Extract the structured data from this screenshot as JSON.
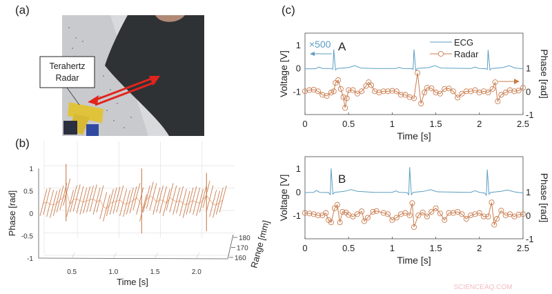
{
  "panels": {
    "a": "(a)",
    "b": "(b)",
    "c": "(c)"
  },
  "photo": {
    "annotation_line1": "Terahertz",
    "annotation_line2": "Radar"
  },
  "watermark": "SCIENCEAQ.COM",
  "colors": {
    "ecg": "#5b9ec2",
    "radar": "#c97b4d",
    "arrow_red": "#e3241c"
  },
  "chart_data": [
    {
      "id": "b",
      "type": "line",
      "projection": "3d-waterfall",
      "xlabel": "Time [s]",
      "ylabel": "Phase [rad]",
      "zlabel": "Range [mm]",
      "xticks": [
        "0.5",
        "1.0",
        "1.5",
        "2.0"
      ],
      "yticks": [
        "1",
        "0.5",
        "0",
        "-0.5",
        "-1"
      ],
      "zticks": [
        "180",
        "170",
        "160"
      ],
      "xlim": [
        0.15,
        2.35
      ],
      "ylim": [
        -1,
        1.2
      ],
      "grid": true,
      "series": [
        {
          "t": [
            0.15,
            0.19,
            0.23,
            0.27,
            0.31,
            0.35,
            0.39,
            0.43,
            0.47,
            0.51,
            0.55,
            0.59,
            0.63,
            0.67,
            0.71,
            0.75,
            0.79,
            0.83,
            0.87,
            0.91,
            0.95,
            0.99,
            1.03,
            1.07,
            1.11,
            1.15,
            1.19,
            1.23,
            1.27,
            1.31,
            1.35,
            1.39,
            1.43,
            1.47,
            1.51,
            1.55,
            1.59,
            1.63,
            1.67,
            1.71,
            1.75,
            1.79,
            1.83,
            1.87,
            1.91,
            1.95,
            1.99,
            2.03,
            2.07,
            2.11,
            2.15,
            2.19,
            2.23,
            2.27,
            2.31
          ],
          "phase": [
            0.22,
            0.25,
            0.2,
            0.18,
            0.22,
            0.3,
            0.35,
            0.45,
            0.2,
            0.3,
            0.32,
            0.28,
            0.25,
            0.28,
            0.3,
            0.32,
            0.25,
            0.3,
            0.15,
            0.1,
            0.22,
            0.25,
            0.27,
            0.3,
            0.22,
            0.2,
            0.25,
            0.28,
            0.35,
            0.25,
            0.1,
            0.3,
            0.38,
            0.35,
            0.25,
            0.3,
            0.28,
            0.22,
            0.35,
            0.3,
            0.25,
            0.28,
            0.22,
            0.18,
            0.25,
            0.28,
            0.25,
            0.22,
            0.3,
            0.4,
            0.3,
            0.2,
            0.18,
            0.25,
            0.3
          ],
          "spikes": [
            {
              "t": 0.43,
              "max": 1.1,
              "min": -0.18
            },
            {
              "t": 1.34,
              "max": 1.0,
              "min": -0.45
            },
            {
              "t": 2.12,
              "max": 0.9,
              "min": -0.4
            }
          ]
        }
      ]
    },
    {
      "id": "c-A",
      "type": "line",
      "label": "A",
      "gain_annotation": "×500",
      "xlabel": "Time [s]",
      "ylabel_left": "Voltage [V]",
      "ylabel_right": "Phase [rad]",
      "xticks": [
        "0",
        "0.5",
        "1",
        "1.5",
        "2",
        "2.5"
      ],
      "yticks_left": [
        "1",
        "0",
        "-1"
      ],
      "yticks_right": [
        "1",
        "0",
        "-1"
      ],
      "xlim": [
        0,
        2.5
      ],
      "ylim_left": [
        -2,
        1.5
      ],
      "ylim_right": [
        -1,
        2.5
      ],
      "legend": {
        "position": "top-right",
        "entries": [
          "ECG",
          "Radar"
        ]
      },
      "series": [
        {
          "name": "ECG",
          "axis": "left",
          "points": [
            [
              0,
              -0.03
            ],
            [
              0.12,
              -0.03
            ],
            [
              0.16,
              0.04
            ],
            [
              0.2,
              -0.02
            ],
            [
              0.3,
              -0.02
            ],
            [
              0.32,
              -0.05
            ],
            [
              0.33,
              0.8
            ],
            [
              0.35,
              -0.08
            ],
            [
              0.37,
              -0.02
            ],
            [
              0.5,
              0.02
            ],
            [
              0.57,
              0.1
            ],
            [
              0.64,
              0.0
            ],
            [
              0.8,
              -0.02
            ],
            [
              1.04,
              -0.02
            ],
            [
              1.08,
              0.03
            ],
            [
              1.12,
              -0.02
            ],
            [
              1.23,
              -0.03
            ],
            [
              1.24,
              -0.06
            ],
            [
              1.25,
              0.8
            ],
            [
              1.27,
              -0.1
            ],
            [
              1.29,
              -0.02
            ],
            [
              1.42,
              0.02
            ],
            [
              1.49,
              0.1
            ],
            [
              1.56,
              0.0
            ],
            [
              1.9,
              -0.02
            ],
            [
              1.95,
              0.04
            ],
            [
              2.0,
              -0.02
            ],
            [
              2.08,
              -0.03
            ],
            [
              2.09,
              -0.06
            ],
            [
              2.1,
              0.78
            ],
            [
              2.12,
              -0.08
            ],
            [
              2.14,
              -0.02
            ],
            [
              2.27,
              0.02
            ],
            [
              2.34,
              0.1
            ],
            [
              2.41,
              0.0
            ],
            [
              2.5,
              -0.03
            ]
          ]
        },
        {
          "name": "Radar",
          "axis": "right",
          "points": [
            [
              0,
              0.0
            ],
            [
              0.05,
              0.05
            ],
            [
              0.1,
              0.07
            ],
            [
              0.15,
              0
            ],
            [
              0.2,
              -0.15
            ],
            [
              0.25,
              -0.2
            ],
            [
              0.3,
              -0.05
            ],
            [
              0.33,
              0
            ],
            [
              0.35,
              0.36
            ],
            [
              0.38,
              0.48
            ],
            [
              0.41,
              0.1
            ],
            [
              0.44,
              -0.25
            ],
            [
              0.46,
              -0.71
            ],
            [
              0.48,
              -0.3
            ],
            [
              0.5,
              0.05
            ],
            [
              0.55,
              0.05
            ],
            [
              0.6,
              -0.1
            ],
            [
              0.65,
              0
            ],
            [
              0.7,
              0.23
            ],
            [
              0.73,
              0.39
            ],
            [
              0.76,
              0.26
            ],
            [
              0.8,
              0
            ],
            [
              0.85,
              -0.05
            ],
            [
              0.9,
              0
            ],
            [
              0.95,
              0
            ],
            [
              1.0,
              0.02
            ],
            [
              1.05,
              0
            ],
            [
              1.1,
              -0.15
            ],
            [
              1.15,
              -0.15
            ],
            [
              1.2,
              -0.25
            ],
            [
              1.25,
              -0.3
            ],
            [
              1.29,
              0.79
            ],
            [
              1.33,
              -0.53
            ],
            [
              1.37,
              -0.05
            ],
            [
              1.4,
              0.15
            ],
            [
              1.45,
              0.13
            ],
            [
              1.5,
              -0.05
            ],
            [
              1.55,
              -0.1
            ],
            [
              1.6,
              0.1
            ],
            [
              1.65,
              0.12
            ],
            [
              1.7,
              0
            ],
            [
              1.75,
              -0.27
            ],
            [
              1.8,
              -0.1
            ],
            [
              1.85,
              0
            ],
            [
              1.9,
              0
            ],
            [
              1.95,
              0.05
            ],
            [
              2.0,
              -0.05
            ],
            [
              2.05,
              0
            ],
            [
              2.1,
              -0.05
            ],
            [
              2.15,
              0.1
            ],
            [
              2.18,
              0.39
            ],
            [
              2.21,
              -0.43
            ],
            [
              2.25,
              -0.15
            ],
            [
              2.3,
              -0.05
            ],
            [
              2.35,
              0.05
            ],
            [
              2.4,
              0
            ],
            [
              2.45,
              0.03
            ],
            [
              2.5,
              0.15
            ]
          ]
        }
      ]
    },
    {
      "id": "c-B",
      "type": "line",
      "label": "B",
      "xlabel": "Time [s]",
      "ylabel_left": "Voltage [V]",
      "ylabel_right": "Phase [rad]",
      "xticks": [
        "0",
        "0.5",
        "1",
        "1.5",
        "2",
        "2.5"
      ],
      "yticks_left": [
        "1",
        "0",
        "-1"
      ],
      "yticks_right": [
        "1",
        "0",
        "-1"
      ],
      "xlim": [
        0,
        2.5
      ],
      "ylim_left": [
        -2,
        1.5
      ],
      "ylim_right": [
        -1,
        2.5
      ],
      "series": [
        {
          "name": "ECG",
          "axis": "left",
          "points": [
            [
              0,
              -0.03
            ],
            [
              0.1,
              -0.02
            ],
            [
              0.13,
              0.06
            ],
            [
              0.17,
              -0.02
            ],
            [
              0.27,
              -0.03
            ],
            [
              0.29,
              -0.12
            ],
            [
              0.3,
              1.0
            ],
            [
              0.32,
              -0.1
            ],
            [
              0.34,
              -0.02
            ],
            [
              0.45,
              0.02
            ],
            [
              0.53,
              0.1
            ],
            [
              0.6,
              0.02
            ],
            [
              0.8,
              -0.02
            ],
            [
              1.0,
              -0.02
            ],
            [
              1.04,
              0.04
            ],
            [
              1.08,
              -0.02
            ],
            [
              1.17,
              -0.03
            ],
            [
              1.19,
              -0.12
            ],
            [
              1.2,
              1.05
            ],
            [
              1.22,
              -0.12
            ],
            [
              1.24,
              -0.02
            ],
            [
              1.36,
              0.02
            ],
            [
              1.44,
              0.09
            ],
            [
              1.52,
              0.0
            ],
            [
              1.9,
              -0.02
            ],
            [
              1.95,
              0.05
            ],
            [
              2.0,
              -0.02
            ],
            [
              2.06,
              -0.05
            ],
            [
              2.08,
              -0.15
            ],
            [
              2.09,
              0.95
            ],
            [
              2.11,
              -0.1
            ],
            [
              2.13,
              -0.02
            ],
            [
              2.25,
              0.02
            ],
            [
              2.32,
              0.08
            ],
            [
              2.4,
              0.0
            ],
            [
              2.5,
              -0.05
            ]
          ]
        },
        {
          "name": "Radar",
          "axis": "right",
          "points": [
            [
              0,
              0.1
            ],
            [
              0.05,
              0.08
            ],
            [
              0.1,
              0.05
            ],
            [
              0.15,
              0
            ],
            [
              0.2,
              0
            ],
            [
              0.24,
              0.1
            ],
            [
              0.27,
              -0.2
            ],
            [
              0.3,
              -0.3
            ],
            [
              0.34,
              0.3
            ],
            [
              0.37,
              0.45
            ],
            [
              0.4,
              -0.3
            ],
            [
              0.43,
              0.15
            ],
            [
              0.47,
              0.12
            ],
            [
              0.5,
              0.02
            ],
            [
              0.55,
              -0.05
            ],
            [
              0.6,
              0.05
            ],
            [
              0.65,
              0.17
            ],
            [
              0.68,
              -0.25
            ],
            [
              0.72,
              -0.1
            ],
            [
              0.78,
              0.15
            ],
            [
              0.82,
              0.18
            ],
            [
              0.9,
              0.1
            ],
            [
              0.95,
              0.05
            ],
            [
              1.0,
              -0.2
            ],
            [
              1.05,
              -0.1
            ],
            [
              1.1,
              0.05
            ],
            [
              1.15,
              0.1
            ],
            [
              1.2,
              0
            ],
            [
              1.23,
              0.52
            ],
            [
              1.25,
              -0.5
            ],
            [
              1.3,
              0
            ],
            [
              1.35,
              0.12
            ],
            [
              1.4,
              -0.05
            ],
            [
              1.45,
              0.15
            ],
            [
              1.5,
              0.3
            ],
            [
              1.55,
              0.08
            ],
            [
              1.6,
              -0.2
            ],
            [
              1.65,
              0.1
            ],
            [
              1.7,
              0.1
            ],
            [
              1.75,
              0.15
            ],
            [
              1.8,
              0.05
            ],
            [
              1.85,
              -0.15
            ],
            [
              1.9,
              0
            ],
            [
              1.95,
              0.05
            ],
            [
              2.0,
              0.1
            ],
            [
              2.05,
              -0.05
            ],
            [
              2.1,
              -0.05
            ],
            [
              2.14,
              0.55
            ],
            [
              2.17,
              -0.4
            ],
            [
              2.2,
              -0.15
            ],
            [
              2.25,
              0.2
            ],
            [
              2.3,
              0
            ],
            [
              2.35,
              0.05
            ],
            [
              2.4,
              -0.05
            ],
            [
              2.45,
              0.03
            ],
            [
              2.5,
              0.05
            ]
          ]
        }
      ]
    }
  ]
}
